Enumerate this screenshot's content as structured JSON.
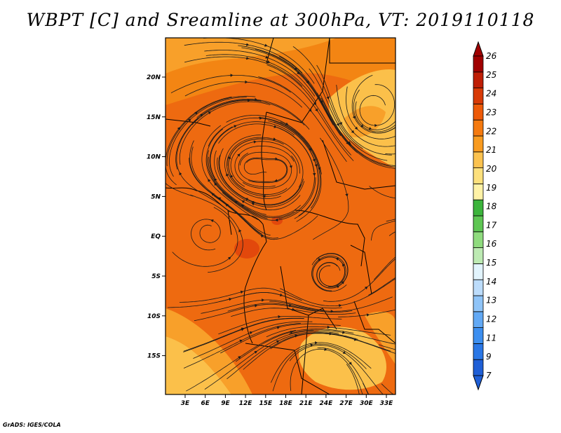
{
  "title": "WBPT [C] and Sreamline at 300hPa, VT: 2019110118",
  "footer": "GrADS: IGES/COLA",
  "lat_labels": [
    "20N",
    "15N",
    "10N",
    "5N",
    "EQ",
    "5S",
    "10S",
    "15S"
  ],
  "lon_labels": [
    "3E",
    "6E",
    "9E",
    "12E",
    "15E",
    "18E",
    "21E",
    "24E",
    "27E",
    "30E",
    "33E"
  ],
  "colorbar": {
    "labels": [
      "7",
      "9",
      "11",
      "12",
      "13",
      "14",
      "15",
      "16",
      "17",
      "18",
      "19",
      "20",
      "21",
      "22",
      "23",
      "24",
      "25",
      "26"
    ],
    "colors": [
      "#1f5fd6",
      "#2a77e6",
      "#3d8ff0",
      "#62a9f5",
      "#8fc4f8",
      "#bcdcfb",
      "#e2f4fd",
      "#bdeab3",
      "#8fdb7e",
      "#5ec653",
      "#3cb43c",
      "#fff2a6",
      "#fde07c",
      "#fbc24f",
      "#f99b1f",
      "#f57a0f",
      "#ee5a08",
      "#d83a06",
      "#bf1e05",
      "#a00000"
    ]
  },
  "field_colors": {
    "base": "#ee6a10",
    "warm": "#f38513",
    "lighter": "#f8a02a",
    "pale": "#fbc04a",
    "hot": "#e2480c"
  }
}
